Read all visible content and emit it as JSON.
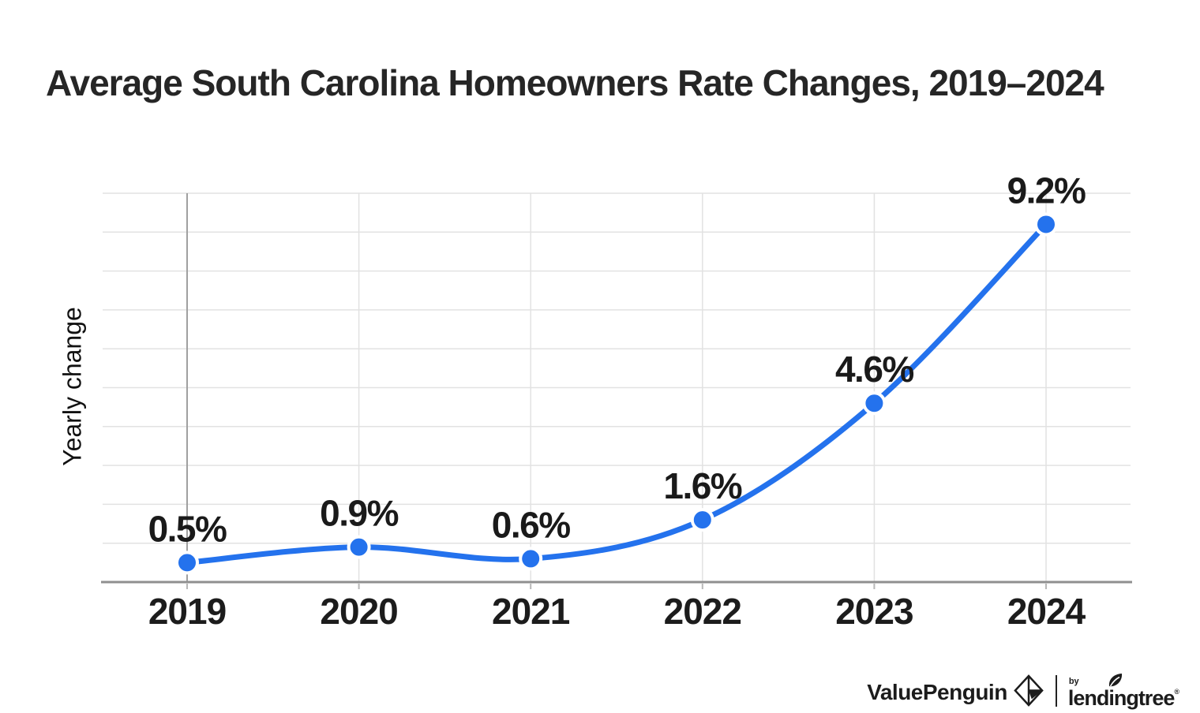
{
  "title": "Average South Carolina Homeowners Rate Changes, 2019–2024",
  "chart_data": {
    "type": "line",
    "title": "Average South Carolina Homeowners Rate Changes, 2019–2024",
    "categories": [
      "2019",
      "2020",
      "2021",
      "2022",
      "2023",
      "2024"
    ],
    "values": [
      0.5,
      0.9,
      0.6,
      1.6,
      4.6,
      9.2
    ],
    "point_labels": [
      "0.5%",
      "0.9%",
      "0.6%",
      "1.6%",
      "4.6%",
      "9.2%"
    ],
    "xlabel": "",
    "ylabel": "Yearly change",
    "ylim": [
      0,
      10
    ],
    "gridline_step": 1,
    "grid": true,
    "legend": "none",
    "smooth": true,
    "colors": {
      "line": "#2472ed",
      "point": "#2472ed",
      "point_halo": "#ffffff",
      "gridline": "#e2e2e2",
      "first_category_gridline": "#a0a0a0",
      "axis": "#8f8f8f",
      "tick": "#b8b8b8",
      "data_label": "#1a1a1a",
      "category_label": "#1c1c1c",
      "title": "#262626"
    }
  },
  "footer": {
    "valuepenguin": "ValuePenguin",
    "by": "by",
    "lendingtree": "lendingtree",
    "trademark": "®"
  }
}
